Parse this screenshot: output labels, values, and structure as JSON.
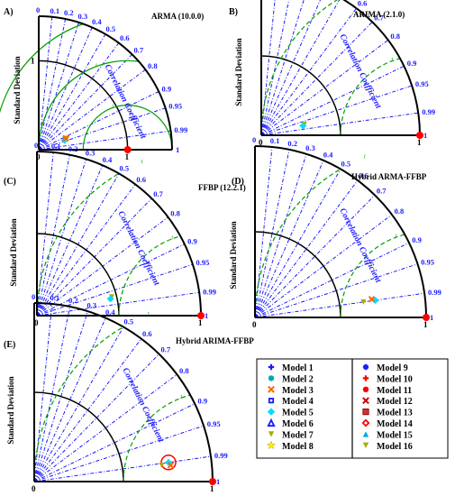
{
  "chart_data": {
    "type": "taylor",
    "correlation_axis_title": "Correlation Coefficient",
    "std_axis_title": "Standard Deviation",
    "correlation_ticks": [
      {
        "label": "0",
        "value": 0
      },
      {
        "label": "0.1",
        "value": 0.1
      },
      {
        "label": "0.2",
        "value": 0.2
      },
      {
        "label": "0.3",
        "value": 0.3
      },
      {
        "label": "0.4",
        "value": 0.4
      },
      {
        "label": "0.5",
        "value": 0.5
      },
      {
        "label": "0.6",
        "value": 0.6
      },
      {
        "label": "0.7",
        "value": 0.7
      },
      {
        "label": "0.8",
        "value": 0.8
      },
      {
        "label": "0.9",
        "value": 0.9
      },
      {
        "label": "0.95",
        "value": 0.95
      },
      {
        "label": "0.99",
        "value": 0.99
      },
      {
        "label": "1",
        "value": 1
      }
    ],
    "std_ticks": [
      "0",
      "1"
    ],
    "rms_label": "1",
    "panels": [
      {
        "label": "A)",
        "title": "ARMA (10.0.0)",
        "std_max": 1.5,
        "rms_style": "solid",
        "rms_radii": [
          0.5,
          1.0,
          1.5
        ],
        "reference_std": 1.0,
        "points": [
          {
            "std": 0.34,
            "corr": 0.93
          },
          {
            "std": 0.31,
            "corr": 0.94
          },
          {
            "std": 0.33,
            "corr": 0.92
          }
        ]
      },
      {
        "label": "B)",
        "title": "ARIMA (2.1.0)",
        "std_max": 1.0,
        "rms_style": "dashed",
        "rms_radii": [
          0.5,
          1.0
        ],
        "reference_std": 1.0,
        "points": [
          {
            "std": 0.28,
            "corr": 0.97
          },
          {
            "std": 0.27,
            "corr": 0.975
          }
        ]
      },
      {
        "label": "(C)",
        "title": "FFBP (12.2.1)",
        "std_max": 1.0,
        "rms_style": "dashed",
        "rms_radii": [
          0.5,
          1.0
        ],
        "reference_std": 1.0,
        "points": [
          {
            "std": 0.47,
            "corr": 0.97
          },
          {
            "std": 0.46,
            "corr": 0.975
          }
        ]
      },
      {
        "label": "(D)",
        "title": "Hybrid ARMA-FFBP",
        "std_max": 1.0,
        "rms_style": "dashed",
        "rms_radii": [
          0.5,
          1.0
        ],
        "reference_std": 1.0,
        "points": [
          {
            "std": 0.64,
            "corr": 0.99
          },
          {
            "std": 0.71,
            "corr": 0.99
          },
          {
            "std": 0.69,
            "corr": 0.988
          }
        ]
      },
      {
        "label": "(E)",
        "title": "Hybrid ARIMA-FFBP",
        "std_max": 1.0,
        "rms_style": "dashed",
        "rms_radii": [
          0.5,
          1.0
        ],
        "reference_std": 1.0,
        "points": [
          {
            "std": 0.72,
            "corr": 0.992
          },
          {
            "std": 0.76,
            "corr": 0.99
          },
          {
            "std": 0.77,
            "corr": 0.993
          }
        ]
      }
    ],
    "legend": [
      {
        "name": "Model 1",
        "color": "#1a1aff",
        "marker": "plus"
      },
      {
        "name": "Model 2",
        "color": "#00aaaa",
        "marker": "circle"
      },
      {
        "name": "Model 3",
        "color": "#ff6600",
        "marker": "x"
      },
      {
        "name": "Model 4",
        "color": "#1a1aff",
        "marker": "square-open"
      },
      {
        "name": "Model 5",
        "color": "#00ddff",
        "marker": "diamond"
      },
      {
        "name": "Model 6",
        "color": "#1a1aff",
        "marker": "triangle-open"
      },
      {
        "name": "Model 7",
        "color": "#aaaa00",
        "marker": "triangle-down"
      },
      {
        "name": "Model 8",
        "color": "#ffee00",
        "marker": "star"
      },
      {
        "name": "Model 9",
        "color": "#1a1aff",
        "marker": "asterisk"
      },
      {
        "name": "Model 10",
        "color": "#ff0000",
        "marker": "plus"
      },
      {
        "name": "Model 11",
        "color": "#ff0000",
        "marker": "circle"
      },
      {
        "name": "Model 12",
        "color": "#cc0000",
        "marker": "x"
      },
      {
        "name": "Model 13",
        "color": "#cc3333",
        "marker": "square"
      },
      {
        "name": "Model 14",
        "color": "#ff0000",
        "marker": "diamond-open"
      },
      {
        "name": "Model 15",
        "color": "#00aadd",
        "marker": "triangle"
      },
      {
        "name": "Model 16",
        "color": "#aaaa00",
        "marker": "triangle-down"
      }
    ],
    "colors": {
      "axes": "#000000",
      "correlation": "#1a1aff",
      "rms": "#00a000",
      "reference": "#ff0000"
    }
  }
}
